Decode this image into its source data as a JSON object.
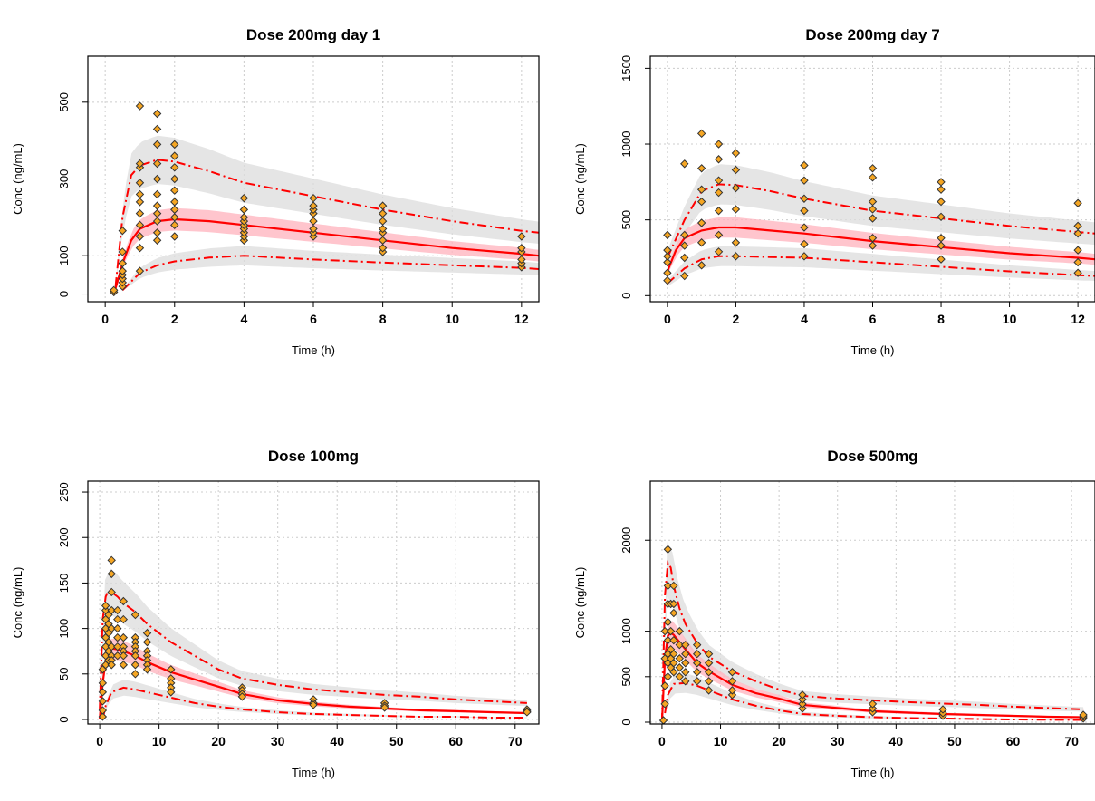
{
  "chart_data": [
    {
      "type": "scatter",
      "title": "Dose 200mg day 1",
      "xlabel": "Time (h)",
      "ylabel": "Conc (ng/mL)",
      "xlim": [
        -0.5,
        12.5
      ],
      "ylim": [
        -20,
        620
      ],
      "xticks": [
        0,
        2,
        4,
        6,
        8,
        10,
        12
      ],
      "yticks": [
        0,
        100,
        300,
        500
      ],
      "grid": true,
      "series": [
        {
          "role": "observed",
          "color": "#f5a623",
          "x": [
            0.25,
            0.25,
            0.5,
            0.5,
            0.5,
            0.5,
            0.5,
            0.5,
            0.5,
            0.5,
            1,
            1,
            1,
            1,
            1,
            1,
            1,
            1,
            1,
            1,
            1,
            1.5,
            1.5,
            1.5,
            1.5,
            1.5,
            1.5,
            1.5,
            1.5,
            1.5,
            1.5,
            1.5,
            2,
            2,
            2,
            2,
            2,
            2,
            2,
            2,
            2,
            2,
            4,
            4,
            4,
            4,
            4,
            4,
            4,
            4,
            4,
            6,
            6,
            6,
            6,
            6,
            6,
            6,
            6,
            8,
            8,
            8,
            8,
            8,
            8,
            8,
            8,
            12,
            12,
            12,
            12,
            12,
            12
          ],
          "y": [
            5,
            10,
            20,
            30,
            40,
            50,
            60,
            80,
            110,
            165,
            60,
            120,
            150,
            180,
            210,
            240,
            260,
            290,
            330,
            340,
            490,
            140,
            160,
            190,
            210,
            230,
            260,
            300,
            340,
            390,
            430,
            470,
            150,
            180,
            200,
            220,
            240,
            270,
            300,
            330,
            360,
            390,
            140,
            150,
            160,
            170,
            180,
            190,
            200,
            220,
            250,
            150,
            160,
            170,
            190,
            210,
            220,
            230,
            250,
            110,
            120,
            140,
            160,
            170,
            190,
            210,
            230,
            70,
            80,
            90,
            110,
            120,
            150
          ]
        },
        {
          "role": "median",
          "color": "#ff0000",
          "x": [
            0.2,
            0.3,
            0.5,
            0.75,
            1,
            1.5,
            2,
            3,
            4,
            6,
            8,
            10,
            12,
            12.5
          ],
          "y": [
            0,
            15,
            80,
            140,
            170,
            190,
            195,
            190,
            180,
            160,
            140,
            120,
            105,
            100
          ]
        },
        {
          "role": "p95",
          "color": "#ff0000",
          "x": [
            0.3,
            0.5,
            0.75,
            1,
            1.5,
            2,
            3,
            4,
            6,
            8,
            10,
            12,
            12.5
          ],
          "y": [
            20,
            200,
            310,
            335,
            350,
            345,
            320,
            290,
            255,
            220,
            190,
            165,
            160
          ]
        },
        {
          "role": "p5",
          "color": "#ff0000",
          "x": [
            0.5,
            1,
            1.5,
            2,
            3,
            4,
            6,
            8,
            10,
            12,
            12.5
          ],
          "y": [
            10,
            55,
            75,
            85,
            95,
            100,
            90,
            82,
            75,
            68,
            65
          ]
        }
      ]
    },
    {
      "type": "scatter",
      "title": "Dose 200mg day 7",
      "xlabel": "Time (h)",
      "ylabel": "Conc (ng/mL)",
      "xlim": [
        -0.5,
        12.5
      ],
      "ylim": [
        -40,
        1580
      ],
      "xticks": [
        0,
        2,
        4,
        6,
        8,
        10,
        12
      ],
      "yticks": [
        0,
        500,
        1000,
        1500
      ],
      "grid": true,
      "series": [
        {
          "role": "observed",
          "color": "#f5a623",
          "x": [
            0,
            0,
            0,
            0,
            0,
            0,
            0.5,
            0.5,
            0.5,
            0.5,
            0.5,
            1,
            1,
            1,
            1,
            1,
            1,
            1,
            1.5,
            1.5,
            1.5,
            1.5,
            1.5,
            1.5,
            1.5,
            2,
            2,
            2,
            2,
            2,
            2,
            4,
            4,
            4,
            4,
            4,
            4,
            4,
            6,
            6,
            6,
            6,
            6,
            6,
            6,
            8,
            8,
            8,
            8,
            8,
            8,
            8,
            12,
            12,
            12,
            12,
            12,
            12
          ],
          "y": [
            100,
            150,
            220,
            260,
            300,
            400,
            130,
            250,
            330,
            400,
            870,
            200,
            350,
            480,
            620,
            700,
            840,
            1070,
            290,
            400,
            560,
            680,
            760,
            900,
            1000,
            260,
            350,
            570,
            710,
            830,
            940,
            260,
            340,
            450,
            560,
            640,
            760,
            860,
            330,
            380,
            510,
            570,
            620,
            780,
            840,
            240,
            330,
            380,
            520,
            620,
            700,
            750,
            150,
            220,
            300,
            410,
            460,
            610
          ]
        },
        {
          "role": "median",
          "color": "#ff0000",
          "x": [
            0,
            0.25,
            0.5,
            1,
            1.5,
            2,
            3,
            4,
            6,
            8,
            10,
            12,
            12.5
          ],
          "y": [
            160,
            300,
            380,
            430,
            450,
            450,
            430,
            410,
            360,
            320,
            280,
            250,
            240
          ]
        },
        {
          "role": "p95",
          "color": "#ff0000",
          "x": [
            0,
            0.5,
            1,
            1.5,
            2,
            3,
            4,
            6,
            8,
            10,
            12,
            12.5
          ],
          "y": [
            250,
            500,
            690,
            735,
            730,
            690,
            640,
            560,
            510,
            460,
            420,
            410
          ]
        },
        {
          "role": "p5",
          "color": "#ff0000",
          "x": [
            0,
            0.5,
            1,
            1.5,
            2,
            3,
            4,
            6,
            8,
            10,
            12,
            12.5
          ],
          "y": [
            80,
            180,
            240,
            260,
            260,
            255,
            250,
            220,
            190,
            160,
            135,
            130
          ]
        }
      ]
    },
    {
      "type": "scatter",
      "title": "Dose 100mg",
      "xlabel": "Time (h)",
      "ylabel": "Conc (ng/mL)",
      "xlim": [
        -2,
        74
      ],
      "ylim": [
        -5,
        262
      ],
      "xticks": [
        0,
        10,
        20,
        30,
        40,
        50,
        60,
        70
      ],
      "yticks": [
        0,
        50,
        100,
        150,
        200,
        250
      ],
      "grid": true,
      "series": [
        {
          "role": "observed",
          "color": "#f5a623",
          "x": [
            0.5,
            0.5,
            0.5,
            0.5,
            0.5,
            0.5,
            1,
            1,
            1,
            1,
            1,
            1,
            1,
            1,
            1.5,
            1.5,
            1.5,
            1.5,
            1.5,
            1.5,
            2,
            2,
            2,
            2,
            2,
            2,
            2,
            2,
            2,
            3,
            3,
            3,
            3,
            3,
            3,
            4,
            4,
            4,
            4,
            4,
            4,
            4,
            6,
            6,
            6,
            6,
            6,
            6,
            6,
            6,
            8,
            8,
            8,
            8,
            8,
            8,
            8,
            12,
            12,
            12,
            12,
            12,
            24,
            24,
            24,
            24,
            36,
            36,
            36,
            48,
            48,
            48,
            72,
            72,
            72
          ],
          "y": [
            3,
            10,
            20,
            30,
            40,
            55,
            60,
            70,
            80,
            90,
            100,
            110,
            120,
            125,
            65,
            75,
            85,
            95,
            105,
            115,
            175,
            160,
            140,
            120,
            100,
            80,
            70,
            65,
            60,
            120,
            110,
            100,
            90,
            80,
            70,
            130,
            110,
            90,
            80,
            75,
            70,
            60,
            115,
            90,
            85,
            80,
            75,
            70,
            60,
            50,
            95,
            85,
            75,
            70,
            65,
            60,
            55,
            55,
            45,
            40,
            35,
            30,
            35,
            32,
            28,
            25,
            22,
            18,
            16,
            18,
            15,
            13,
            11,
            9,
            8
          ]
        },
        {
          "role": "median",
          "color": "#ff0000",
          "x": [
            0,
            0.5,
            1,
            1.5,
            2,
            3,
            4,
            6,
            8,
            12,
            16,
            20,
            24,
            30,
            36,
            42,
            48,
            54,
            60,
            66,
            72
          ],
          "y": [
            0,
            40,
            65,
            75,
            78,
            77,
            75,
            70,
            63,
            52,
            44,
            36,
            28,
            21,
            17,
            14,
            12,
            10,
            9,
            8,
            7
          ]
        },
        {
          "role": "p95",
          "color": "#ff0000",
          "x": [
            0,
            0.5,
            1,
            1.5,
            2,
            3,
            4,
            6,
            8,
            12,
            16,
            20,
            24,
            30,
            36,
            42,
            48,
            54,
            60,
            66,
            72
          ],
          "y": [
            10,
            110,
            135,
            142,
            140,
            135,
            128,
            118,
            105,
            85,
            70,
            55,
            45,
            38,
            33,
            30,
            27,
            25,
            22,
            20,
            18
          ]
        },
        {
          "role": "p5",
          "color": "#ff0000",
          "x": [
            0.5,
            1,
            2,
            4,
            6,
            8,
            12,
            16,
            20,
            24,
            30,
            36,
            42,
            48,
            54,
            60,
            66,
            72
          ],
          "y": [
            0,
            15,
            30,
            35,
            33,
            30,
            24,
            18,
            14,
            11,
            8,
            6,
            5,
            4,
            3,
            3,
            2,
            2
          ]
        }
      ]
    },
    {
      "type": "scatter",
      "title": "Dose 500mg",
      "xlabel": "Time (h)",
      "ylabel": "Conc (ng/mL)",
      "xlim": [
        -2,
        74
      ],
      "ylim": [
        -20,
        2650
      ],
      "xticks": [
        0,
        10,
        20,
        30,
        40,
        50,
        60,
        70
      ],
      "yticks": [
        0,
        500,
        1000,
        2000
      ],
      "grid": true,
      "series": [
        {
          "role": "observed",
          "color": "#f5a623",
          "x": [
            0.25,
            0.5,
            0.5,
            0.5,
            0.5,
            1,
            1,
            1,
            1,
            1,
            1,
            1,
            1,
            1.5,
            1.5,
            1.5,
            1.5,
            1.5,
            2,
            2,
            2,
            2,
            2,
            2,
            2,
            3,
            3,
            3,
            3,
            3,
            4,
            4,
            4,
            4,
            4,
            6,
            6,
            6,
            6,
            6,
            8,
            8,
            8,
            8,
            8,
            12,
            12,
            12,
            12,
            24,
            24,
            24,
            24,
            36,
            36,
            36,
            48,
            48,
            48,
            72,
            72,
            72
          ],
          "y": [
            20,
            200,
            400,
            700,
            1000,
            500,
            650,
            750,
            900,
            1100,
            1300,
            1500,
            1900,
            600,
            700,
            800,
            1000,
            1300,
            550,
            650,
            750,
            900,
            1200,
            1300,
            1500,
            500,
            600,
            700,
            850,
            1000,
            450,
            550,
            650,
            750,
            850,
            450,
            550,
            650,
            750,
            850,
            350,
            450,
            550,
            650,
            750,
            300,
            350,
            450,
            550,
            150,
            200,
            250,
            300,
            110,
            150,
            200,
            70,
            100,
            140,
            40,
            60,
            80
          ]
        },
        {
          "role": "median",
          "color": "#ff0000",
          "x": [
            0,
            0.5,
            1,
            1.5,
            2,
            3,
            4,
            6,
            8,
            12,
            16,
            20,
            24,
            30,
            36,
            42,
            48,
            54,
            60,
            66,
            72
          ],
          "y": [
            0,
            700,
            950,
            980,
            960,
            880,
            800,
            650,
            560,
            410,
            320,
            260,
            190,
            155,
            120,
            105,
            90,
            80,
            70,
            60,
            55
          ]
        },
        {
          "role": "p95",
          "color": "#ff0000",
          "x": [
            0,
            0.5,
            1,
            1.5,
            2,
            3,
            4,
            6,
            8,
            12,
            16,
            20,
            24,
            30,
            36,
            42,
            48,
            54,
            60,
            66,
            72
          ],
          "y": [
            0,
            1400,
            1750,
            1700,
            1500,
            1250,
            1080,
            870,
            720,
            560,
            450,
            360,
            290,
            260,
            240,
            220,
            205,
            190,
            170,
            155,
            140
          ]
        },
        {
          "role": "p5",
          "color": "#ff0000",
          "x": [
            0.5,
            1,
            2,
            4,
            6,
            8,
            12,
            16,
            20,
            24,
            30,
            36,
            42,
            48,
            54,
            60,
            66,
            72
          ],
          "y": [
            100,
            300,
            420,
            430,
            400,
            350,
            250,
            180,
            130,
            90,
            70,
            55,
            45,
            40,
            35,
            30,
            27,
            25
          ]
        }
      ]
    }
  ]
}
